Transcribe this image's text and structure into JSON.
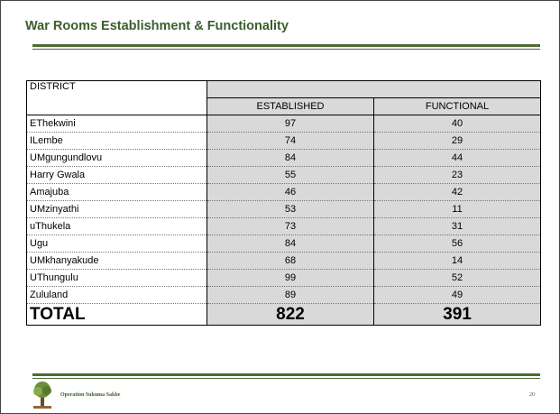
{
  "header": {
    "title": "War Rooms Establishment & Functionality"
  },
  "table": {
    "columns": [
      "DISTRICT",
      "ESTABLISHED",
      "FUNCTIONAL"
    ],
    "rows": [
      [
        "EThekwini",
        "97",
        "40"
      ],
      [
        "ILembe",
        "74",
        "29"
      ],
      [
        "UMgungundlovu",
        "84",
        "44"
      ],
      [
        "Harry Gwala",
        "55",
        "23"
      ],
      [
        "Amajuba",
        "46",
        "42"
      ],
      [
        "UMzinyathi",
        "53",
        "11"
      ],
      [
        "uThukela",
        "73",
        "31"
      ],
      [
        "Ugu",
        "84",
        "56"
      ],
      [
        "UMkhanyakude",
        "68",
        "14"
      ],
      [
        "UThungulu",
        "99",
        "52"
      ],
      [
        "Zululand",
        "89",
        "49"
      ]
    ],
    "total": [
      "TOTAL",
      "822",
      "391"
    ]
  },
  "footer": {
    "text": "Operation Sukuma Sakhe",
    "page": "20"
  }
}
